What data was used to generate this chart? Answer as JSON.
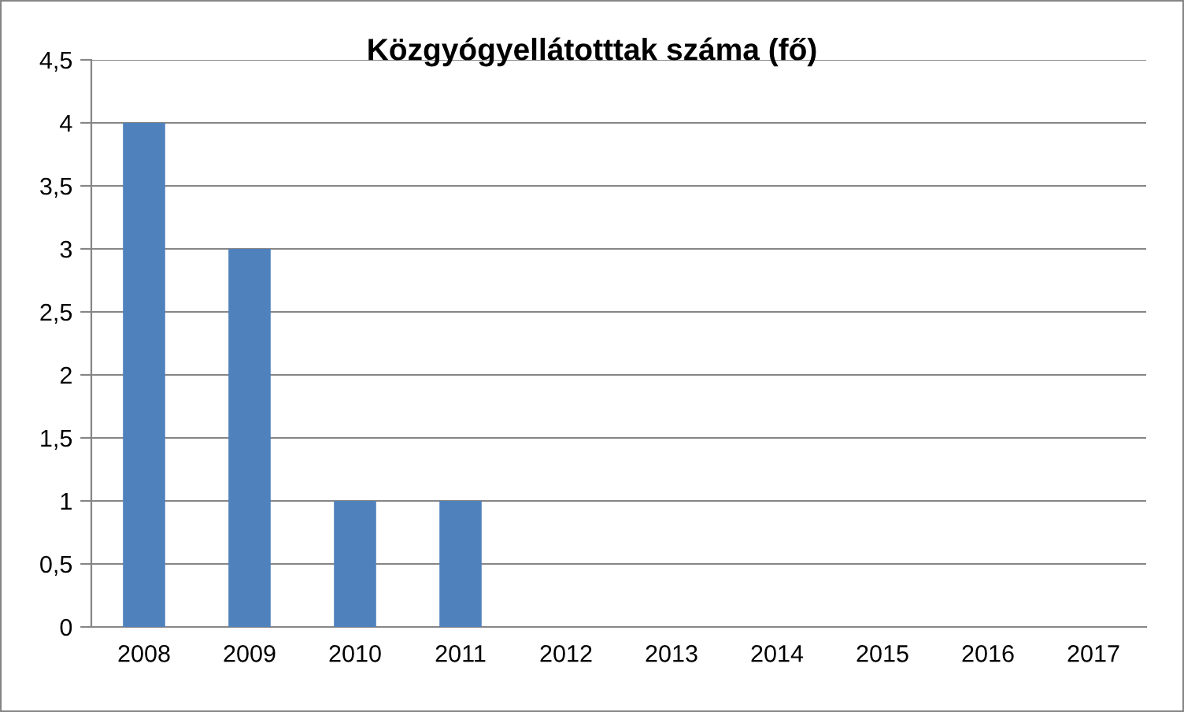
{
  "chart_data": {
    "type": "bar",
    "title": "Közgyógyellátotttak száma (fő)",
    "categories": [
      "2008",
      "2009",
      "2010",
      "2011",
      "2012",
      "2013",
      "2014",
      "2015",
      "2016",
      "2017"
    ],
    "values": [
      4,
      3,
      1,
      1,
      0,
      0,
      0,
      0,
      0,
      0
    ],
    "color": "#4f81bd",
    "ylim": [
      0,
      4.5
    ],
    "yticks": [
      0,
      {
        "value": 0.5,
        "label": "0,5"
      },
      1,
      {
        "value": 1.5,
        "label": "1,5"
      },
      2,
      {
        "value": 2.5,
        "label": "2,5"
      },
      3,
      {
        "value": 3.5,
        "label": "3,5"
      },
      4,
      {
        "value": 4.5,
        "label": "4,5"
      }
    ],
    "grid": "y",
    "legend": false
  }
}
